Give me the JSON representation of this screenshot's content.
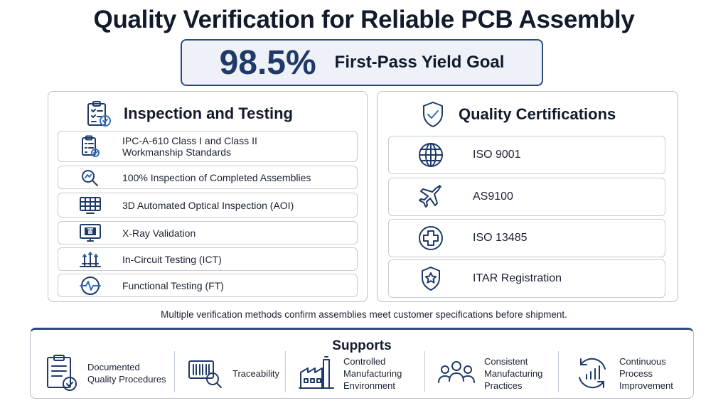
{
  "title": "Quality Verification for Reliable PCB Assembly",
  "goal": {
    "value": "98.5%",
    "label": "First-Pass Yield Goal"
  },
  "inspection": {
    "heading": "Inspection and Testing",
    "heading_icon": "clipboard-check-icon",
    "items": [
      {
        "line1": "IPC-A-610 Class I and Class II",
        "line2": "Workmanship Standards",
        "icon": "checklist-icon"
      },
      {
        "line1": "100% Inspection of Completed Assemblies",
        "line2": "",
        "icon": "magnifier-icon"
      },
      {
        "line1": "3D Automated Optical Inspection (AOI)",
        "line2": "",
        "icon": "aoi-grid-icon"
      },
      {
        "line1": "X-Ray Validation",
        "line2": "",
        "icon": "xray-monitor-icon"
      },
      {
        "line1": "In-Circuit Testing (ICT)",
        "line2": "",
        "icon": "test-probe-icon"
      },
      {
        "line1": "Functional Testing (FT)",
        "line2": "",
        "icon": "waveform-icon"
      }
    ]
  },
  "certifications": {
    "heading": "Quality Certifications",
    "heading_icon": "shield-check-icon",
    "items": [
      {
        "label": "ISO 9001",
        "icon": "globe-icon"
      },
      {
        "label": "AS9100",
        "icon": "airplane-icon"
      },
      {
        "label": "ISO 13485",
        "icon": "medical-cross-icon"
      },
      {
        "label": "ITAR Registration",
        "icon": "shield-star-icon"
      }
    ]
  },
  "caption": "Multiple verification methods confirm assemblies meet customer specifications before shipment.",
  "supports": {
    "title": "Supports",
    "items": [
      {
        "line1": "Documented",
        "line2": "Quality Procedures",
        "line3": "",
        "icon": "document-check-icon"
      },
      {
        "line1": "Traceability",
        "line2": "",
        "line3": "",
        "icon": "barcode-search-icon"
      },
      {
        "line1": "Controlled",
        "line2": "Manufacturing",
        "line3": "Environment",
        "icon": "factory-icon"
      },
      {
        "line1": "Consistent",
        "line2": "Manufacturing",
        "line3": "Practices",
        "icon": "team-icon"
      },
      {
        "line1": "Continuous",
        "line2": "Process",
        "line3": "Improvement",
        "icon": "cycle-chart-icon"
      }
    ]
  },
  "colors": {
    "navy": "#1f3a68",
    "blue": "#2f6fb8",
    "border": "#b9c1cd",
    "goal_bg": "#eef2f8"
  }
}
